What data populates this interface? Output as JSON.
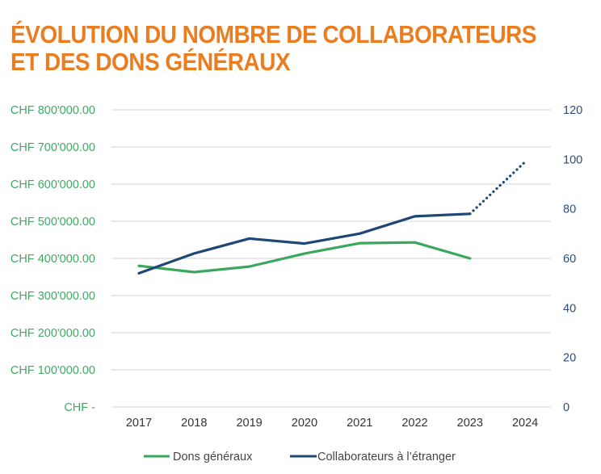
{
  "title_line1": "ÉVOLUTION DU NOMBRE DE COLLABORATEURS",
  "title_line2": "ET DES DONS GÉNÉRAUX",
  "colors": {
    "title": "#ea7d1f",
    "dons": "#3aa85c",
    "collaborateurs": "#1f4775",
    "grid": "#d9d9d9"
  },
  "chart_data": {
    "type": "line",
    "title": "ÉVOLUTION DU NOMBRE DE COLLABORATEURS ET DES DONS GÉNÉRAUX",
    "x": [
      "2017",
      "2018",
      "2019",
      "2020",
      "2021",
      "2022",
      "2023",
      "2024"
    ],
    "xlabel": "",
    "y_left": {
      "label": "",
      "range": [
        0,
        800000
      ],
      "ticks": [
        0,
        100000,
        200000,
        300000,
        400000,
        500000,
        600000,
        700000,
        800000
      ],
      "tick_labels": [
        "CHF -",
        "CHF 100'000.00",
        "CHF 200'000.00",
        "CHF 300'000.00",
        "CHF 400'000.00",
        "CHF 500'000.00",
        "CHF 600'000.00",
        "CHF 700'000.00",
        "CHF 800'000.00"
      ]
    },
    "y_right": {
      "label": "",
      "range": [
        0,
        120
      ],
      "ticks": [
        0,
        20,
        40,
        60,
        80,
        100,
        120
      ],
      "tick_labels": [
        "0",
        "20",
        "40",
        "60",
        "80",
        "100",
        "120"
      ]
    },
    "grid": true,
    "legend_position": "bottom",
    "series": [
      {
        "name": "Dons généraux",
        "axis": "left",
        "values": [
          380000,
          363000,
          378000,
          413000,
          441000,
          443000,
          400000,
          null
        ]
      },
      {
        "name": "Collaborateurs à l'étranger",
        "axis": "right",
        "values": [
          54,
          62,
          68,
          66,
          70,
          77,
          78,
          99
        ],
        "projected_from_index": 6
      }
    ]
  },
  "legend": [
    {
      "label": "Dons généraux"
    },
    {
      "label": "Collaborateurs à l’étranger"
    }
  ]
}
